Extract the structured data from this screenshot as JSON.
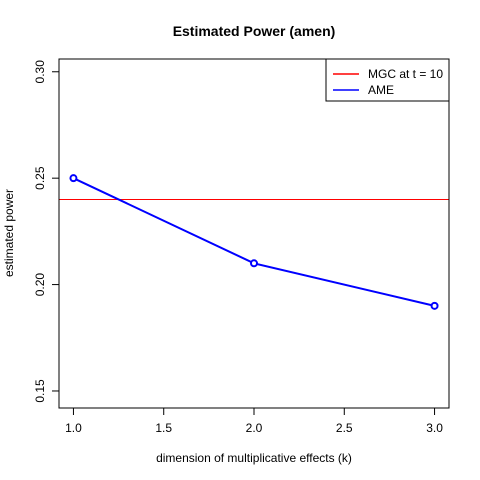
{
  "chart_data": {
    "type": "line",
    "title": "Estimated Power (amen)",
    "xlabel": "dimension of multiplicative effects (k)",
    "ylabel": "estimated power",
    "xlim": [
      0.92,
      3.08
    ],
    "ylim": [
      0.142,
      0.306
    ],
    "x_ticks": [
      1.0,
      1.5,
      2.0,
      2.5,
      3.0
    ],
    "x_tick_labels": [
      "1.0",
      "1.5",
      "2.0",
      "2.5",
      "3.0"
    ],
    "y_ticks": [
      0.15,
      0.2,
      0.25,
      0.3
    ],
    "y_tick_labels": [
      "0.15",
      "0.20",
      "0.25",
      "0.30"
    ],
    "grid": false,
    "legend_position": "top-right",
    "series": [
      {
        "name": "AME",
        "color": "#0000ff",
        "x": [
          1,
          2,
          3
        ],
        "values": [
          0.25,
          0.21,
          0.19
        ],
        "marker": "open-circle"
      }
    ],
    "reference_lines": [
      {
        "name": "MGC at t = 10",
        "color": "#ff0000",
        "orientation": "horizontal",
        "value": 0.24
      }
    ],
    "legend": [
      {
        "label": "MGC at t = 10",
        "color": "#ff0000"
      },
      {
        "label": "AME",
        "color": "#0000ff"
      }
    ]
  }
}
